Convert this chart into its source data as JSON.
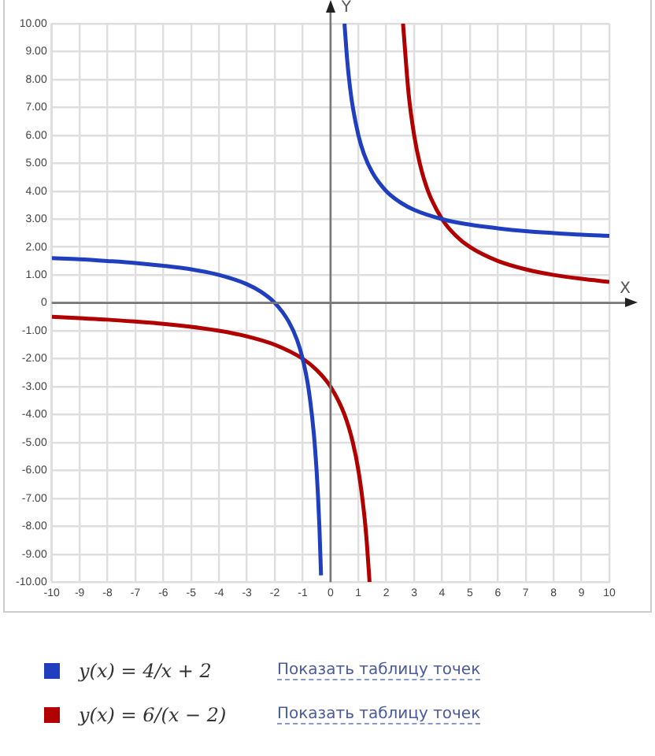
{
  "chart_data": {
    "type": "line",
    "xlabel": "X",
    "ylabel": "Y",
    "xlim": [
      -10,
      10
    ],
    "ylim": [
      -10,
      10
    ],
    "xticks": [
      -10,
      -9,
      -8,
      -7,
      -6,
      -5,
      -4,
      -3,
      -2,
      -1,
      0,
      1,
      2,
      3,
      4,
      5,
      6,
      7,
      8,
      9,
      10
    ],
    "yticks": [
      {
        "value": -10,
        "label": "-10.00"
      },
      {
        "value": -9,
        "label": "-9.00"
      },
      {
        "value": -8,
        "label": "-8.00"
      },
      {
        "value": -7,
        "label": "-7.00"
      },
      {
        "value": -6,
        "label": "-6.00"
      },
      {
        "value": -5,
        "label": "-5.00"
      },
      {
        "value": -4,
        "label": "-4.00"
      },
      {
        "value": -3,
        "label": "-3.00"
      },
      {
        "value": -2,
        "label": "-2.00"
      },
      {
        "value": -1,
        "label": "-1.00"
      },
      0,
      {
        "value": 1,
        "label": "1.00"
      },
      {
        "value": 2,
        "label": "2.00"
      },
      {
        "value": 3,
        "label": "3.00"
      },
      {
        "value": 4,
        "label": "4.00"
      },
      {
        "value": 5,
        "label": "5.00"
      },
      {
        "value": 6,
        "label": "6.00"
      },
      {
        "value": 7,
        "label": "7.00"
      },
      {
        "value": 8,
        "label": "8.00"
      },
      {
        "value": 9,
        "label": "9.00"
      },
      {
        "value": 10,
        "label": "10.00"
      }
    ],
    "grid": true,
    "legend": "bottom",
    "marker": "none",
    "line_style": "solid",
    "annotations": [
      "Показать таблицу точек",
      "Показать таблицу точек"
    ],
    "series": [
      {
        "name": "y(x) = 4/x + 2",
        "color": "#1f3fbf",
        "x": [
          -10,
          -9,
          -8,
          -7,
          -6,
          -5,
          -4,
          -3,
          -2.5,
          -2,
          -1.5,
          -1.2,
          -1,
          -0.8,
          -0.6,
          -0.5,
          -0.45,
          -0.4,
          -0.34,
          0,
          0.5,
          0.6,
          0.7,
          0.8,
          1,
          1.2,
          1.5,
          2,
          2.5,
          3,
          4,
          5,
          6,
          7,
          8,
          9,
          10
        ],
        "values": [
          1.6,
          1.56,
          1.5,
          1.43,
          1.33,
          1.2,
          1,
          0.67,
          0.4,
          0,
          -0.67,
          -1.33,
          -2,
          -3,
          -4.67,
          -6,
          -6.89,
          -8,
          -9.76,
          null,
          10,
          8.67,
          7.71,
          7,
          6,
          5.33,
          4.67,
          4,
          3.6,
          3.33,
          3,
          2.8,
          2.67,
          2.57,
          2.5,
          2.44,
          2.4
        ]
      },
      {
        "name": "y(x) = 6/(x − 2)",
        "color": "#b00000",
        "x": [
          -10,
          -9,
          -8,
          -7,
          -6,
          -5,
          -4,
          -3,
          -2,
          -1,
          -0.5,
          0,
          0.5,
          0.8,
          1,
          1.2,
          1.3,
          1.4,
          2,
          2.6,
          2.8,
          3,
          3.2,
          3.5,
          4,
          4.5,
          5,
          6,
          7,
          8,
          9,
          10
        ],
        "values": [
          -0.5,
          -0.55,
          -0.6,
          -0.67,
          -0.75,
          -0.86,
          -1,
          -1.2,
          -1.5,
          -2,
          -2.4,
          -3,
          -4,
          -5,
          -6,
          -7.5,
          -8.57,
          -10,
          null,
          10,
          7.5,
          6,
          5,
          4,
          3,
          2.4,
          2,
          1.5,
          1.2,
          1,
          0.86,
          0.75
        ]
      }
    ]
  }
}
